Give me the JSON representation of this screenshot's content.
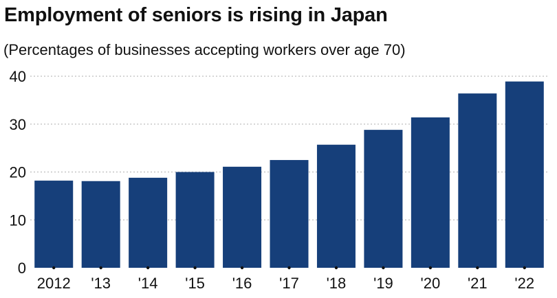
{
  "chart_data": {
    "type": "bar",
    "title": "Employment of seniors is rising in Japan",
    "subtitle": "(Percentages of businesses accepting workers over age 70)",
    "xlabel": "",
    "ylabel": "",
    "categories": [
      "2012",
      "'13",
      "'14",
      "'15",
      "'16",
      "'17",
      "'18",
      "'19",
      "'20",
      "'21",
      "'22"
    ],
    "values": [
      18.2,
      18.1,
      18.8,
      20.0,
      21.1,
      22.5,
      25.7,
      28.8,
      31.4,
      36.4,
      38.9
    ],
    "ylim": [
      0,
      40
    ],
    "yticks": [
      "0",
      "10",
      "20",
      "30",
      "40"
    ],
    "grid": "horizontal dotted",
    "colors": {
      "bar": "#163f7a",
      "grid": "#bdbdbd",
      "text": "#111111"
    }
  }
}
